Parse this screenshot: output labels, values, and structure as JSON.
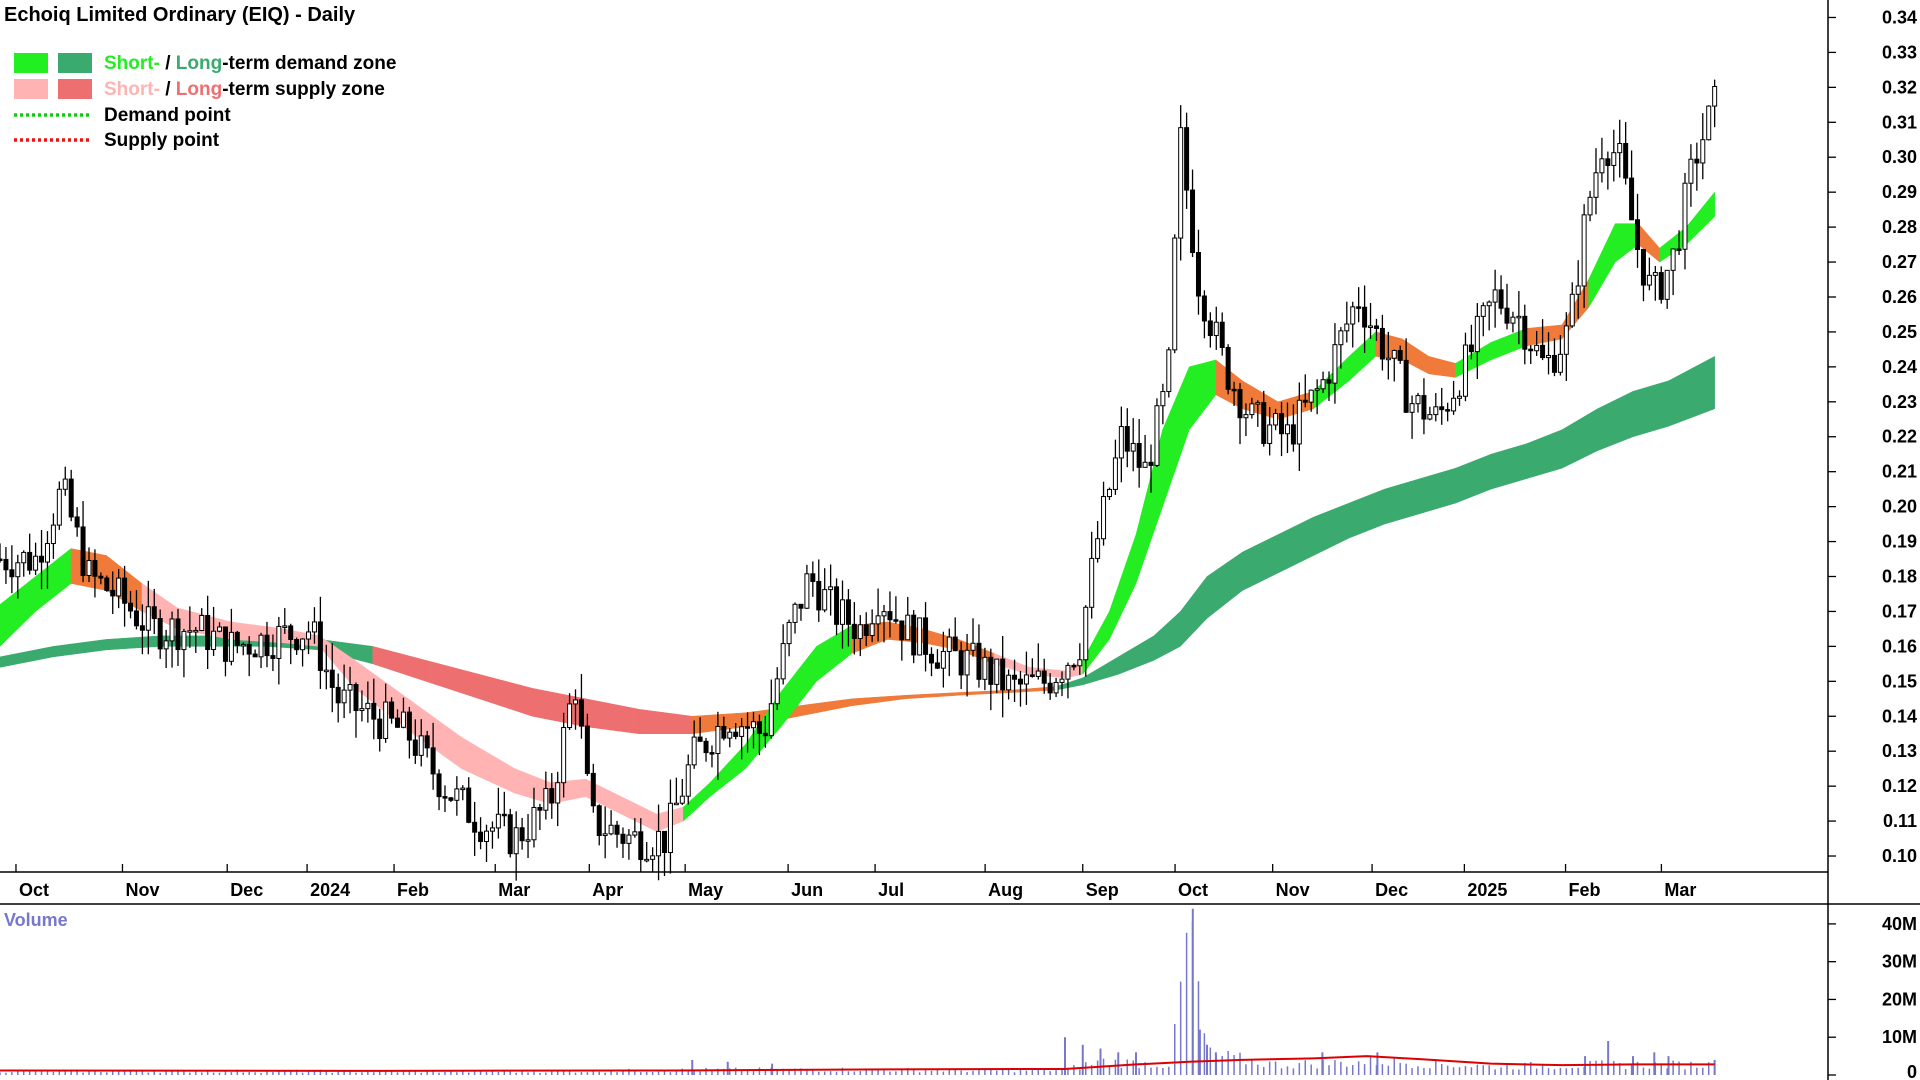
{
  "chart_data": {
    "type": "candlestick",
    "title": "Echoiq Limited Ordinary (EIQ) - Daily",
    "colors": {
      "short_demand": "#22ee22",
      "long_demand": "#3aaa6e",
      "short_supply": "#ffb3b3",
      "long_supply": "#ee6f6f",
      "overlap_zone": "#f07a3a",
      "demand_point": "#11cc11",
      "supply_point": "#ee1111",
      "candle": "#000000",
      "volume_bar": "#7777cc",
      "volume_avg": "#dd0000"
    },
    "legend": [
      {
        "parts": [
          {
            "text": "Short-",
            "color": "#22ee22"
          },
          {
            "text": " / ",
            "color": "#000000"
          },
          {
            "text": "Long",
            "color": "#3aaa6e"
          },
          {
            "text": "-term demand zone",
            "color": "#000000"
          }
        ]
      },
      {
        "parts": [
          {
            "text": "Short-",
            "color": "#ffb3b3"
          },
          {
            "text": " / ",
            "color": "#000000"
          },
          {
            "text": "Long",
            "color": "#ee6f6f"
          },
          {
            "text": "-term supply zone",
            "color": "#000000"
          }
        ]
      },
      {
        "parts": [
          {
            "text": "Demand point",
            "color": "#000000"
          }
        ]
      },
      {
        "parts": [
          {
            "text": "Supply point",
            "color": "#000000"
          }
        ]
      }
    ],
    "price_axis": {
      "ylim": [
        0.096,
        0.345
      ],
      "ticks": [
        "0.10",
        "0.11",
        "0.12",
        "0.13",
        "0.14",
        "0.15",
        "0.16",
        "0.17",
        "0.18",
        "0.19",
        "0.20",
        "0.21",
        "0.22",
        "0.23",
        "0.24",
        "0.25",
        "0.26",
        "0.27",
        "0.28",
        "0.29",
        "0.30",
        "0.31",
        "0.32",
        "0.33",
        "0.34"
      ]
    },
    "x_axis": {
      "xlim": [
        0,
        100
      ],
      "months": [
        {
          "label": "Oct",
          "x": 0.9
        },
        {
          "label": "Nov",
          "x": 6.9
        },
        {
          "label": "Dec",
          "x": 12.8
        },
        {
          "label": "2024",
          "x": 17.3
        },
        {
          "label": "Feb",
          "x": 22.2
        },
        {
          "label": "Mar",
          "x": 27.9
        },
        {
          "label": "Apr",
          "x": 33.2
        },
        {
          "label": "May",
          "x": 38.6
        },
        {
          "label": "Jun",
          "x": 44.4
        },
        {
          "label": "Jul",
          "x": 49.3
        },
        {
          "label": "Aug",
          "x": 55.5
        },
        {
          "label": "Sep",
          "x": 61.0
        },
        {
          "label": "Oct",
          "x": 66.2
        },
        {
          "label": "Nov",
          "x": 71.7
        },
        {
          "label": "Dec",
          "x": 77.3
        },
        {
          "label": "2025",
          "x": 82.5
        },
        {
          "label": "Feb",
          "x": 88.2
        },
        {
          "label": "Mar",
          "x": 93.6
        }
      ]
    },
    "price_path": [
      [
        0,
        0.185
      ],
      [
        2,
        0.185
      ],
      [
        3.5,
        0.205
      ],
      [
        5,
        0.18
      ],
      [
        6.5,
        0.175
      ],
      [
        8.5,
        0.165
      ],
      [
        11,
        0.165
      ],
      [
        13,
        0.16
      ],
      [
        15,
        0.162
      ],
      [
        17.5,
        0.165
      ],
      [
        19,
        0.145
      ],
      [
        21,
        0.14
      ],
      [
        23,
        0.135
      ],
      [
        25,
        0.12
      ],
      [
        27,
        0.11
      ],
      [
        29,
        0.105
      ],
      [
        31,
        0.115
      ],
      [
        32.4,
        0.15
      ],
      [
        33.3,
        0.11
      ],
      [
        35.5,
        0.105
      ],
      [
        37.5,
        0.105
      ],
      [
        39,
        0.128
      ],
      [
        41,
        0.14
      ],
      [
        43,
        0.135
      ],
      [
        44.5,
        0.165
      ],
      [
        45.6,
        0.18
      ],
      [
        47,
        0.17
      ],
      [
        48.5,
        0.165
      ],
      [
        49.5,
        0.175
      ],
      [
        51,
        0.165
      ],
      [
        53,
        0.158
      ],
      [
        55,
        0.155
      ],
      [
        57,
        0.148
      ],
      [
        59,
        0.15
      ],
      [
        60.8,
        0.16
      ],
      [
        61.8,
        0.19
      ],
      [
        63.2,
        0.22
      ],
      [
        64.5,
        0.21
      ],
      [
        65.8,
        0.235
      ],
      [
        66.5,
        0.305
      ],
      [
        67.5,
        0.265
      ],
      [
        69,
        0.24
      ],
      [
        70.5,
        0.225
      ],
      [
        72.5,
        0.22
      ],
      [
        74.5,
        0.235
      ],
      [
        76.5,
        0.26
      ],
      [
        78,
        0.245
      ],
      [
        79.5,
        0.23
      ],
      [
        81,
        0.225
      ],
      [
        82.5,
        0.24
      ],
      [
        84.2,
        0.26
      ],
      [
        85.5,
        0.255
      ],
      [
        87,
        0.24
      ],
      [
        88.4,
        0.25
      ],
      [
        89.4,
        0.285
      ],
      [
        90.3,
        0.305
      ],
      [
        91.2,
        0.3
      ],
      [
        92.2,
        0.275
      ],
      [
        93.1,
        0.26
      ],
      [
        94.2,
        0.27
      ],
      [
        95.5,
        0.3
      ],
      [
        96.6,
        0.315
      ]
    ],
    "short_term_zone": [
      [
        0,
        0.16,
        0.172
      ],
      [
        2,
        0.17,
        0.18
      ],
      [
        4,
        0.178,
        0.188
      ],
      [
        6,
        0.176,
        0.186
      ],
      [
        8,
        0.17,
        0.178
      ],
      [
        10,
        0.165,
        0.171
      ],
      [
        13,
        0.162,
        0.167
      ],
      [
        16,
        0.161,
        0.165
      ],
      [
        18,
        0.16,
        0.163
      ],
      [
        20,
        0.148,
        0.156
      ],
      [
        23,
        0.136,
        0.145
      ],
      [
        26,
        0.125,
        0.134
      ],
      [
        29,
        0.118,
        0.125
      ],
      [
        31,
        0.115,
        0.121
      ],
      [
        33,
        0.117,
        0.122
      ],
      [
        35,
        0.112,
        0.117
      ],
      [
        37,
        0.107,
        0.112
      ],
      [
        38.5,
        0.11,
        0.114
      ],
      [
        40,
        0.117,
        0.121
      ],
      [
        42,
        0.125,
        0.132
      ],
      [
        44,
        0.137,
        0.147
      ],
      [
        46,
        0.15,
        0.16
      ],
      [
        48,
        0.158,
        0.166
      ],
      [
        50,
        0.162,
        0.167
      ],
      [
        52,
        0.161,
        0.165
      ],
      [
        54,
        0.159,
        0.162
      ],
      [
        56,
        0.155,
        0.158
      ],
      [
        58,
        0.152,
        0.154
      ],
      [
        60,
        0.151,
        0.153
      ],
      [
        61,
        0.152,
        0.156
      ],
      [
        62.5,
        0.162,
        0.17
      ],
      [
        64,
        0.178,
        0.192
      ],
      [
        65.5,
        0.2,
        0.222
      ],
      [
        67,
        0.222,
        0.24
      ],
      [
        68.5,
        0.232,
        0.242
      ],
      [
        70,
        0.228,
        0.236
      ],
      [
        72,
        0.225,
        0.23
      ],
      [
        74,
        0.228,
        0.233
      ],
      [
        76,
        0.236,
        0.243
      ],
      [
        77.5,
        0.243,
        0.25
      ],
      [
        79,
        0.242,
        0.248
      ],
      [
        80.5,
        0.238,
        0.243
      ],
      [
        82,
        0.237,
        0.241
      ],
      [
        84,
        0.242,
        0.247
      ],
      [
        86,
        0.246,
        0.251
      ],
      [
        88,
        0.248,
        0.252
      ],
      [
        89.5,
        0.257,
        0.265
      ],
      [
        91,
        0.27,
        0.281
      ],
      [
        92.3,
        0.275,
        0.281
      ],
      [
        93.5,
        0.27,
        0.274
      ],
      [
        95,
        0.275,
        0.28
      ],
      [
        96.6,
        0.283,
        0.29
      ]
    ],
    "long_term_zone": [
      [
        0,
        0.154,
        0.157
      ],
      [
        3,
        0.157,
        0.16
      ],
      [
        6,
        0.159,
        0.162
      ],
      [
        9,
        0.16,
        0.163
      ],
      [
        12,
        0.16,
        0.163
      ],
      [
        15,
        0.16,
        0.163
      ],
      [
        18,
        0.159,
        0.162
      ],
      [
        21,
        0.155,
        0.16
      ],
      [
        24,
        0.15,
        0.156
      ],
      [
        27,
        0.145,
        0.152
      ],
      [
        30,
        0.14,
        0.148
      ],
      [
        33,
        0.137,
        0.145
      ],
      [
        36,
        0.135,
        0.142
      ],
      [
        39,
        0.135,
        0.14
      ],
      [
        42,
        0.137,
        0.141
      ],
      [
        45,
        0.14,
        0.143
      ],
      [
        48,
        0.143,
        0.145
      ],
      [
        51,
        0.145,
        0.146
      ],
      [
        54,
        0.146,
        0.1468
      ],
      [
        57,
        0.1468,
        0.1475
      ],
      [
        59.5,
        0.1475,
        0.1485
      ],
      [
        61,
        0.149,
        0.151
      ],
      [
        63,
        0.152,
        0.157
      ],
      [
        65,
        0.156,
        0.163
      ],
      [
        66.5,
        0.16,
        0.17
      ],
      [
        68,
        0.168,
        0.18
      ],
      [
        70,
        0.176,
        0.187
      ],
      [
        72,
        0.181,
        0.192
      ],
      [
        74,
        0.186,
        0.197
      ],
      [
        76,
        0.191,
        0.201
      ],
      [
        78,
        0.195,
        0.205
      ],
      [
        80,
        0.198,
        0.208
      ],
      [
        82,
        0.201,
        0.211
      ],
      [
        84,
        0.205,
        0.215
      ],
      [
        86,
        0.208,
        0.218
      ],
      [
        88,
        0.211,
        0.222
      ],
      [
        90,
        0.216,
        0.228
      ],
      [
        92,
        0.22,
        0.233
      ],
      [
        94,
        0.223,
        0.236
      ],
      [
        96.6,
        0.228,
        0.243
      ]
    ],
    "volume": {
      "axis_label": "Volume",
      "ylim": [
        0,
        45
      ],
      "ticks": [
        "0",
        "10M",
        "20M",
        "30M",
        "40M"
      ],
      "tick_values": [
        0,
        10,
        20,
        30,
        40
      ],
      "baseline_path": [
        [
          0,
          1.2
        ],
        [
          30,
          1.0
        ],
        [
          40,
          1.5
        ],
        [
          48,
          1.6
        ],
        [
          55,
          1.3
        ],
        [
          60,
          1.5
        ],
        [
          62,
          4
        ],
        [
          66,
          3
        ],
        [
          67,
          44
        ],
        [
          68,
          6
        ],
        [
          72,
          3
        ],
        [
          78,
          4
        ],
        [
          84,
          2.5
        ],
        [
          90,
          3
        ],
        [
          96.6,
          3
        ]
      ],
      "spikes": [
        [
          39,
          4
        ],
        [
          41,
          3.5
        ],
        [
          43.5,
          3
        ],
        [
          60,
          10
        ],
        [
          61,
          8
        ],
        [
          62,
          7
        ],
        [
          63,
          6
        ],
        [
          64,
          6
        ],
        [
          67.2,
          44
        ],
        [
          67.6,
          12
        ],
        [
          68,
          8
        ],
        [
          68.5,
          6
        ],
        [
          74.5,
          6
        ],
        [
          77.6,
          6
        ],
        [
          89.3,
          5
        ],
        [
          90.6,
          9
        ],
        [
          92,
          5
        ],
        [
          93.2,
          6
        ],
        [
          94,
          5
        ],
        [
          96.6,
          4
        ]
      ],
      "avg_path": [
        [
          0,
          1.2
        ],
        [
          20,
          1.1
        ],
        [
          38,
          1.2
        ],
        [
          50,
          1.5
        ],
        [
          60,
          1.6
        ],
        [
          64,
          2.8
        ],
        [
          67,
          3.5
        ],
        [
          70,
          4.0
        ],
        [
          74,
          4.4
        ],
        [
          77,
          5.0
        ],
        [
          80,
          4.2
        ],
        [
          84,
          3.0
        ],
        [
          88,
          2.6
        ],
        [
          92,
          2.8
        ],
        [
          96.6,
          2.8
        ]
      ]
    }
  }
}
